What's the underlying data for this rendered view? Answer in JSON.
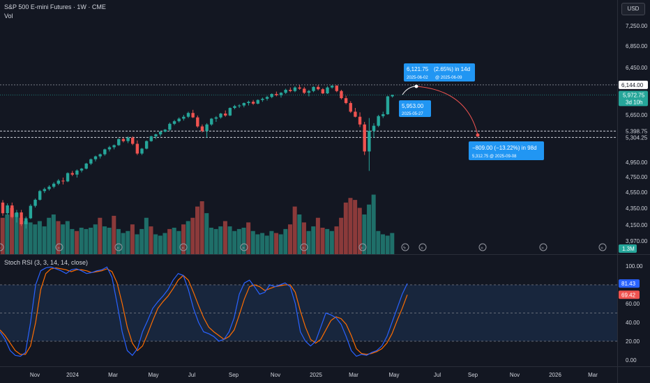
{
  "header": {
    "title": "S&P 500 E-mini Futures · 1W · CME",
    "vol_label": "Vol",
    "currency_button": "USD"
  },
  "chart_data": {
    "type": "candlestick",
    "title": "S&P 500 E-mini Futures · 1W · CME",
    "price_axis": {
      "ticks": [
        "7,250.00",
        "6,850.00",
        "6,450.00",
        "5,650.00",
        "4,950.00",
        "4,750.00",
        "4,550.00",
        "4,350.00",
        "4,150.00",
        "3,970.00"
      ],
      "scale": "log"
    },
    "time_axis": {
      "ticks": [
        "Nov",
        "2024",
        "Mar",
        "May",
        "Jul",
        "Sep",
        "Nov",
        "2025",
        "Mar",
        "May",
        "Jul",
        "Sep",
        "Nov",
        "2026",
        "Mar"
      ]
    },
    "price_labels": {
      "high_line": "6,144.00",
      "last_price": "5,972.75",
      "countdown": "3d 10h",
      "level_1": "5,398.75",
      "level_2": "5,304.25",
      "volume_last": "1.3M"
    },
    "levels": [
      6144.0,
      5398.75,
      5304.25
    ],
    "last_price": 5972.75,
    "candles_ohlc": [
      [
        4420,
        4450,
        4260,
        4290
      ],
      [
        4290,
        4410,
        4270,
        4385
      ],
      [
        4385,
        4420,
        4230,
        4245
      ],
      [
        4245,
        4330,
        4180,
        4300
      ],
      [
        4300,
        4330,
        4140,
        4160
      ],
      [
        4160,
        4250,
        4110,
        4230
      ],
      [
        4230,
        4400,
        4220,
        4380
      ],
      [
        4380,
        4470,
        4360,
        4455
      ],
      [
        4455,
        4580,
        4445,
        4565
      ],
      [
        4565,
        4610,
        4540,
        4590
      ],
      [
        4590,
        4640,
        4570,
        4620
      ],
      [
        4620,
        4680,
        4600,
        4660
      ],
      [
        4660,
        4720,
        4640,
        4700
      ],
      [
        4700,
        4740,
        4650,
        4690
      ],
      [
        4690,
        4810,
        4680,
        4800
      ],
      [
        4800,
        4830,
        4760,
        4780
      ],
      [
        4780,
        4850,
        4740,
        4835
      ],
      [
        4835,
        4870,
        4810,
        4860
      ],
      [
        4860,
        4940,
        4850,
        4930
      ],
      [
        4930,
        5000,
        4910,
        4990
      ],
      [
        4990,
        5040,
        4960,
        5030
      ],
      [
        5030,
        5070,
        5000,
        5060
      ],
      [
        5060,
        5140,
        5040,
        5130
      ],
      [
        5130,
        5180,
        5100,
        5160
      ],
      [
        5160,
        5200,
        5130,
        5190
      ],
      [
        5190,
        5290,
        5180,
        5280
      ],
      [
        5280,
        5300,
        5230,
        5250
      ],
      [
        5250,
        5320,
        5220,
        5300
      ],
      [
        5300,
        5320,
        5190,
        5210
      ],
      [
        5210,
        5260,
        5050,
        5070
      ],
      [
        5070,
        5150,
        5050,
        5140
      ],
      [
        5140,
        5260,
        5130,
        5250
      ],
      [
        5250,
        5330,
        5240,
        5320
      ],
      [
        5320,
        5360,
        5280,
        5350
      ],
      [
        5350,
        5400,
        5320,
        5390
      ],
      [
        5390,
        5430,
        5380,
        5420
      ],
      [
        5420,
        5530,
        5400,
        5510
      ],
      [
        5510,
        5570,
        5490,
        5550
      ],
      [
        5550,
        5610,
        5530,
        5590
      ],
      [
        5590,
        5650,
        5560,
        5620
      ],
      [
        5620,
        5700,
        5600,
        5680
      ],
      [
        5680,
        5730,
        5600,
        5610
      ],
      [
        5610,
        5640,
        5450,
        5470
      ],
      [
        5470,
        5500,
        5380,
        5400
      ],
      [
        5400,
        5520,
        5300,
        5500
      ],
      [
        5500,
        5600,
        5480,
        5590
      ],
      [
        5590,
        5630,
        5540,
        5610
      ],
      [
        5610,
        5680,
        5590,
        5670
      ],
      [
        5670,
        5720,
        5620,
        5640
      ],
      [
        5640,
        5770,
        5630,
        5760
      ],
      [
        5760,
        5810,
        5740,
        5790
      ],
      [
        5790,
        5820,
        5760,
        5800
      ],
      [
        5800,
        5850,
        5770,
        5840
      ],
      [
        5840,
        5880,
        5800,
        5860
      ],
      [
        5860,
        5890,
        5810,
        5830
      ],
      [
        5830,
        5900,
        5820,
        5890
      ],
      [
        5890,
        5930,
        5860,
        5910
      ],
      [
        5910,
        5960,
        5880,
        5940
      ],
      [
        5940,
        6000,
        5920,
        5990
      ],
      [
        5990,
        6030,
        5950,
        5970
      ],
      [
        5970,
        6020,
        5930,
        6010
      ],
      [
        6010,
        6080,
        5990,
        6060
      ],
      [
        6060,
        6100,
        6020,
        6040
      ],
      [
        6040,
        6120,
        6020,
        6100
      ],
      [
        6100,
        6144,
        6060,
        6080
      ],
      [
        6080,
        6110,
        5990,
        6010
      ],
      [
        6010,
        6060,
        5950,
        6040
      ],
      [
        6040,
        6120,
        6020,
        6110
      ],
      [
        6110,
        6140,
        6050,
        6070
      ],
      [
        6070,
        6090,
        5990,
        6000
      ],
      [
        6000,
        6120,
        5990,
        6100
      ],
      [
        6100,
        6140,
        6080,
        6130
      ],
      [
        6130,
        6140,
        6020,
        6040
      ],
      [
        6040,
        6060,
        5900,
        5920
      ],
      [
        5920,
        5960,
        5820,
        5840
      ],
      [
        5840,
        5870,
        5680,
        5700
      ],
      [
        5700,
        5760,
        5610,
        5620
      ],
      [
        5620,
        5690,
        5460,
        5500
      ],
      [
        5500,
        5540,
        5050,
        5100
      ],
      [
        5100,
        5600,
        4830,
        5400
      ],
      [
        5400,
        5520,
        5300,
        5480
      ],
      [
        5480,
        5650,
        5460,
        5630
      ],
      [
        5630,
        5700,
        5600,
        5660
      ],
      [
        5660,
        5960,
        5650,
        5950
      ],
      [
        5950,
        5980,
        5930,
        5972.75
      ]
    ],
    "volume_bars": [
      [
        0.55,
        "d"
      ],
      [
        0.6,
        "u"
      ],
      [
        0.7,
        "d"
      ],
      [
        0.62,
        "u"
      ],
      [
        0.55,
        "d"
      ],
      [
        0.5,
        "u"
      ],
      [
        0.48,
        "u"
      ],
      [
        0.45,
        "u"
      ],
      [
        0.5,
        "u"
      ],
      [
        0.42,
        "u"
      ],
      [
        0.55,
        "u"
      ],
      [
        0.6,
        "u"
      ],
      [
        0.5,
        "d"
      ],
      [
        0.45,
        "u"
      ],
      [
        0.5,
        "u"
      ],
      [
        0.38,
        "u"
      ],
      [
        0.35,
        "d"
      ],
      [
        0.4,
        "u"
      ],
      [
        0.38,
        "u"
      ],
      [
        0.4,
        "u"
      ],
      [
        0.45,
        "u"
      ],
      [
        0.55,
        "d"
      ],
      [
        0.42,
        "u"
      ],
      [
        0.4,
        "u"
      ],
      [
        0.58,
        "d"
      ],
      [
        0.38,
        "u"
      ],
      [
        0.32,
        "u"
      ],
      [
        0.35,
        "u"
      ],
      [
        0.45,
        "d"
      ],
      [
        0.3,
        "u"
      ],
      [
        0.38,
        "u"
      ],
      [
        0.55,
        "u"
      ],
      [
        0.42,
        "d"
      ],
      [
        0.3,
        "u"
      ],
      [
        0.28,
        "u"
      ],
      [
        0.32,
        "u"
      ],
      [
        0.38,
        "d"
      ],
      [
        0.4,
        "u"
      ],
      [
        0.35,
        "u"
      ],
      [
        0.45,
        "d"
      ],
      [
        0.5,
        "u"
      ],
      [
        0.55,
        "d"
      ],
      [
        0.72,
        "d"
      ],
      [
        0.8,
        "d"
      ],
      [
        0.62,
        "u"
      ],
      [
        0.4,
        "u"
      ],
      [
        0.38,
        "u"
      ],
      [
        0.42,
        "u"
      ],
      [
        0.5,
        "d"
      ],
      [
        0.42,
        "u"
      ],
      [
        0.35,
        "u"
      ],
      [
        0.38,
        "u"
      ],
      [
        0.4,
        "u"
      ],
      [
        0.48,
        "d"
      ],
      [
        0.35,
        "u"
      ],
      [
        0.3,
        "u"
      ],
      [
        0.32,
        "u"
      ],
      [
        0.28,
        "u"
      ],
      [
        0.35,
        "u"
      ],
      [
        0.32,
        "d"
      ],
      [
        0.3,
        "u"
      ],
      [
        0.38,
        "u"
      ],
      [
        0.45,
        "d"
      ],
      [
        0.72,
        "d"
      ],
      [
        0.6,
        "u"
      ],
      [
        0.48,
        "d"
      ],
      [
        0.35,
        "u"
      ],
      [
        0.42,
        "u"
      ],
      [
        0.55,
        "d"
      ],
      [
        0.4,
        "d"
      ],
      [
        0.38,
        "u"
      ],
      [
        0.35,
        "u"
      ],
      [
        0.42,
        "d"
      ],
      [
        0.55,
        "d"
      ],
      [
        0.78,
        "d"
      ],
      [
        0.85,
        "d"
      ],
      [
        0.82,
        "d"
      ],
      [
        0.7,
        "d"
      ],
      [
        0.6,
        "u"
      ],
      [
        0.75,
        "u"
      ],
      [
        0.9,
        "u"
      ],
      [
        0.35,
        "u"
      ],
      [
        0.3,
        "u"
      ],
      [
        0.28,
        "u"
      ],
      [
        0.32,
        "u"
      ]
    ],
    "annotations": {
      "upper_box": {
        "line1": "6,121.75",
        "pct": "(2.65%) in 14d",
        "line2": "2025-06-02",
        "line2b": "@ 2025-06-09"
      },
      "lower_small_box": {
        "line1": "5,953.00",
        "line2": "2025-05-27"
      },
      "forecast_box": {
        "line1": "−809.00 (−13.22%) in 98d",
        "line2": "5,312.75 @ 2025-09-08"
      }
    },
    "stoch_rsi": {
      "title": "Stoch RSI (3, 3, 14, 14, close)",
      "ticks": [
        "100.00",
        "60.00",
        "40.00",
        "20.00",
        "0.00"
      ],
      "k_label": "81.43",
      "d_label": "69.42",
      "bands": [
        80,
        50,
        20
      ],
      "k": [
        30,
        22,
        10,
        5,
        4,
        8,
        40,
        80,
        95,
        98,
        99,
        97,
        95,
        92,
        96,
        97,
        95,
        92,
        93,
        95,
        96,
        99,
        88,
        60,
        30,
        10,
        5,
        12,
        30,
        42,
        55,
        62,
        68,
        75,
        85,
        92,
        90,
        75,
        55,
        40,
        30,
        28,
        25,
        20,
        22,
        30,
        45,
        70,
        82,
        85,
        78,
        70,
        72,
        80,
        78,
        80,
        82,
        78,
        60,
        30,
        20,
        15,
        20,
        35,
        50,
        48,
        45,
        38,
        25,
        10,
        4,
        6,
        5,
        8,
        10,
        15,
        25,
        40,
        55,
        70,
        81.43
      ],
      "d": [
        32,
        26,
        18,
        10,
        6,
        6,
        15,
        40,
        75,
        92,
        97,
        98,
        97,
        96,
        94,
        96,
        96,
        95,
        93,
        94,
        95,
        97,
        94,
        82,
        60,
        35,
        18,
        10,
        15,
        28,
        42,
        55,
        62,
        68,
        76,
        85,
        90,
        85,
        72,
        58,
        45,
        35,
        30,
        26,
        22,
        25,
        32,
        48,
        65,
        78,
        80,
        78,
        74,
        76,
        78,
        79,
        80,
        80,
        72,
        52,
        35,
        22,
        18,
        22,
        32,
        42,
        46,
        44,
        38,
        26,
        12,
        7,
        6,
        7,
        9,
        12,
        18,
        28,
        42,
        55,
        69.42
      ]
    },
    "time_axis_markers": 15
  },
  "colors": {
    "bg": "#131722",
    "up": "#26a69a",
    "down": "#ef5350",
    "vol_up": "#1f6f69",
    "vol_down": "#8b3a3a",
    "k_line": "#2962ff",
    "d_line": "#ff6d00",
    "accent_blue": "#2196f3",
    "grid": "#1e222d",
    "text": "#d1d4dc"
  }
}
